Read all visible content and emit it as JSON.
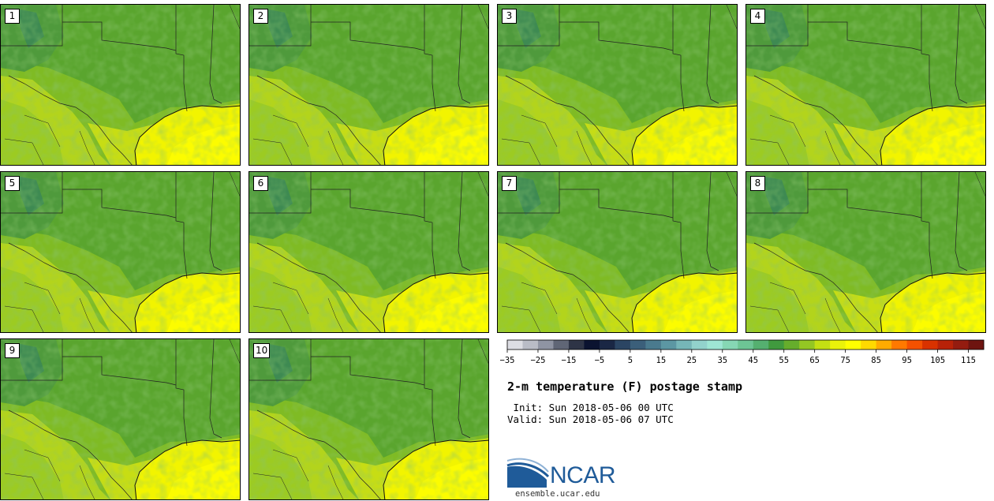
{
  "plot": {
    "title": "2-m temperature (F) postage stamp",
    "init_line": " Init: Sun 2018-05-06 00 UTC",
    "valid_line": "Valid: Sun 2018-05-06 07 UTC"
  },
  "members": [
    "1",
    "2",
    "3",
    "4",
    "5",
    "6",
    "7",
    "8",
    "9",
    "10"
  ],
  "colorbar": {
    "colors": [
      "#dcdde3",
      "#b9bcc6",
      "#8f94a3",
      "#606676",
      "#2e3446",
      "#0b1330",
      "#1a2744",
      "#2b4563",
      "#3b5f7a",
      "#4a7a8e",
      "#5c97a3",
      "#76b6b8",
      "#92d2cc",
      "#9ee6d4",
      "#86d7b4",
      "#6dc595",
      "#55b070",
      "#409a3e",
      "#66ad2c",
      "#94c623",
      "#c4df13",
      "#eaf20a",
      "#ffff00",
      "#ffd900",
      "#ffab00",
      "#ff7900",
      "#f45100",
      "#d93200",
      "#b82208",
      "#941c10",
      "#6e1410"
    ],
    "tick_labels": [
      "−35",
      "−25",
      "−15",
      "−5",
      "5",
      "15",
      "25",
      "35",
      "45",
      "55",
      "65",
      "75",
      "85",
      "95",
      "105",
      "115"
    ]
  },
  "logo": {
    "text": "NCAR",
    "url": "ensemble.ucar.edu"
  }
}
